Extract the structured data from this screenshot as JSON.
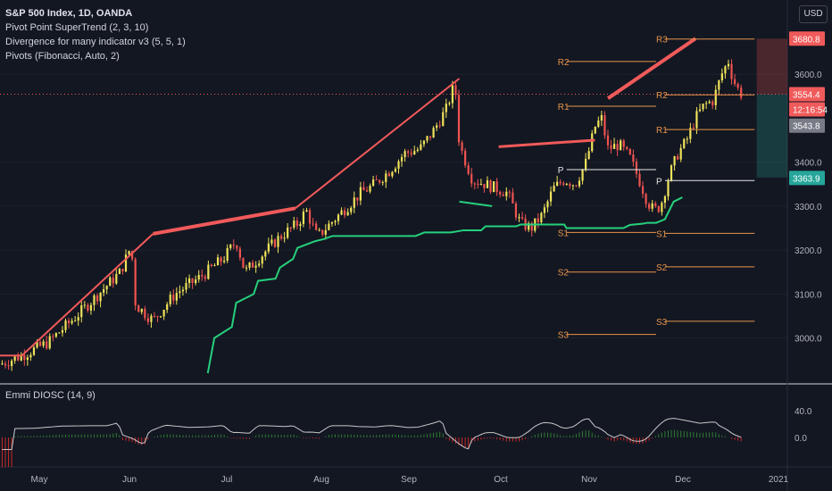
{
  "header": {
    "symbol_title": "S&P 500 Index, 1D, OANDA",
    "indicators": [
      "Pivot Point SuperTrend (2, 3, 10)",
      "Divergence for many indicator v3 (5, 5, 1)",
      "Pivots (Fibonacci, Auto, 2)"
    ],
    "currency": "USD"
  },
  "oscillator": {
    "title": "Emmi DIOSC (14, 9)",
    "yticks": [
      "40.0",
      "0.0"
    ]
  },
  "colors": {
    "background": "#131722",
    "up": "#f0e35a",
    "down": "#ef5350",
    "supertrend": "#26d07c",
    "divergence": "#f05a5a",
    "pivot_level": "#e8944a",
    "pivot_p": "#e8e8e8",
    "osc_line": "#c8c8c8",
    "osc_hist_up": "#2e7d32",
    "osc_hist_down": "#c62828"
  },
  "chart_data": {
    "type": "candlestick",
    "x_ticks": [
      "May",
      "Jun",
      "Jul",
      "Aug",
      "Sep",
      "Oct",
      "Nov",
      "Dec",
      "2021"
    ],
    "y_ticks": [
      3000.0,
      3100.0,
      3200.0,
      3300.0,
      3400.0,
      3600.0
    ],
    "ylim": [
      2920,
      3720
    ],
    "price_labels": [
      {
        "label": "3680.8",
        "value": 3680.8,
        "color": "#f05a5a"
      },
      {
        "label": "3554.4",
        "value": 3554.4,
        "color": "#f05a5a"
      },
      {
        "label": "12:16:54",
        "value": 3520,
        "color": "#f05a5a"
      },
      {
        "label": "3543.8",
        "value": 3483,
        "color": "#787b86"
      },
      {
        "label": "3363.9",
        "value": 3363.9,
        "color": "#26a69a"
      }
    ],
    "close_path": [
      [
        0,
        2940
      ],
      [
        10,
        2960
      ],
      [
        22,
        2990
      ],
      [
        35,
        3050
      ],
      [
        45,
        3100
      ],
      [
        55,
        3150
      ],
      [
        60,
        3210
      ],
      [
        62,
        3075
      ],
      [
        70,
        3040
      ],
      [
        80,
        3100
      ],
      [
        92,
        3140
      ],
      [
        102,
        3180
      ],
      [
        108,
        3220
      ],
      [
        112,
        3150
      ],
      [
        118,
        3180
      ],
      [
        128,
        3230
      ],
      [
        136,
        3260
      ],
      [
        140,
        3290
      ],
      [
        145,
        3230
      ],
      [
        155,
        3280
      ],
      [
        165,
        3330
      ],
      [
        170,
        3345
      ],
      [
        178,
        3380
      ],
      [
        185,
        3420
      ],
      [
        192,
        3430
      ],
      [
        198,
        3470
      ],
      [
        204,
        3520
      ],
      [
        208,
        3580
      ],
      [
        210,
        3440
      ],
      [
        216,
        3360
      ],
      [
        222,
        3350
      ],
      [
        227,
        3340
      ],
      [
        232,
        3330
      ],
      [
        238,
        3260
      ],
      [
        243,
        3250
      ],
      [
        248,
        3280
      ],
      [
        253,
        3340
      ],
      [
        258,
        3360
      ],
      [
        263,
        3350
      ],
      [
        268,
        3400
      ],
      [
        272,
        3480
      ],
      [
        275,
        3500
      ],
      [
        278,
        3430
      ],
      [
        283,
        3440
      ],
      [
        288,
        3410
      ],
      [
        293,
        3350
      ],
      [
        296,
        3310
      ],
      [
        299,
        3290
      ],
      [
        302,
        3300
      ],
      [
        306,
        3370
      ],
      [
        310,
        3420
      ],
      [
        314,
        3450
      ],
      [
        318,
        3500
      ],
      [
        322,
        3530
      ],
      [
        326,
        3540
      ],
      [
        330,
        3600
      ],
      [
        333,
        3630
      ],
      [
        335,
        3590
      ],
      [
        338,
        3560
      ],
      [
        340,
        3550
      ]
    ],
    "supertrend": [
      [
        95,
        2920
      ],
      [
        98,
        3000
      ],
      [
        106,
        3025
      ],
      [
        108,
        3080
      ],
      [
        116,
        3100
      ],
      [
        118,
        3130
      ],
      [
        126,
        3135
      ],
      [
        128,
        3160
      ],
      [
        134,
        3180
      ],
      [
        136,
        3205
      ],
      [
        144,
        3220
      ],
      [
        148,
        3225
      ],
      [
        152,
        3232
      ],
      [
        190,
        3232
      ],
      [
        194,
        3240
      ],
      [
        206,
        3240
      ],
      [
        212,
        3245
      ],
      [
        220,
        3245
      ],
      [
        222,
        3254
      ],
      [
        236,
        3254
      ],
      [
        238,
        3258
      ],
      [
        258,
        3258
      ],
      [
        259,
        3250
      ],
      [
        285,
        3250
      ],
      [
        288,
        3257
      ],
      [
        294,
        3260
      ],
      [
        296,
        3262
      ],
      [
        300,
        3262
      ],
      [
        304,
        3270
      ],
      [
        308,
        3310
      ],
      [
        312,
        3320
      ]
    ],
    "supertrend_short": [
      [
        210,
        3310
      ],
      [
        225,
        3300
      ]
    ],
    "divergence_lines": [
      {
        "from": [
          0,
          2960
        ],
        "to": [
          10,
          2960
        ],
        "width": 2
      },
      {
        "from": [
          10,
          2960
        ],
        "to": [
          70,
          3237
        ],
        "width": 2
      },
      {
        "from": [
          70,
          3237
        ],
        "to": [
          135,
          3295
        ],
        "width": 4
      },
      {
        "from": [
          135,
          3295
        ],
        "to": [
          210,
          3590
        ],
        "width": 2
      },
      {
        "from": [
          228,
          3435
        ],
        "to": [
          272,
          3450
        ],
        "width": 3
      },
      {
        "from": [
          278,
          3545
        ],
        "to": [
          318,
          3681
        ],
        "width": 4
      }
    ],
    "pivot_levels": [
      {
        "name": "R2",
        "value": 3629,
        "x0": 255,
        "x1": 300
      },
      {
        "name": "R1",
        "value": 3527,
        "x0": 255,
        "x1": 300
      },
      {
        "name": "P",
        "value": 3383,
        "x0": 255,
        "x1": 300
      },
      {
        "name": "S1",
        "value": 3240,
        "x0": 255,
        "x1": 300
      },
      {
        "name": "S2",
        "value": 3150,
        "x0": 255,
        "x1": 300
      },
      {
        "name": "S3",
        "value": 3008,
        "x0": 255,
        "x1": 300
      },
      {
        "name": "R3",
        "value": 3680,
        "x0": 300,
        "x1": 345
      },
      {
        "name": "R2",
        "value": 3553,
        "x0": 300,
        "x1": 345
      },
      {
        "name": "R1",
        "value": 3474,
        "x0": 300,
        "x1": 345
      },
      {
        "name": "P",
        "value": 3358,
        "x0": 300,
        "x1": 345
      },
      {
        "name": "S1",
        "value": 3238,
        "x0": 300,
        "x1": 345
      },
      {
        "name": "S2",
        "value": 3162,
        "x0": 300,
        "x1": 345
      },
      {
        "name": "S3",
        "value": 3038,
        "x0": 300,
        "x1": 345
      }
    ],
    "position_box": {
      "entry": 3554.4,
      "stop": 3680.8,
      "target": 3365,
      "x0": 346,
      "x1": 360
    }
  }
}
